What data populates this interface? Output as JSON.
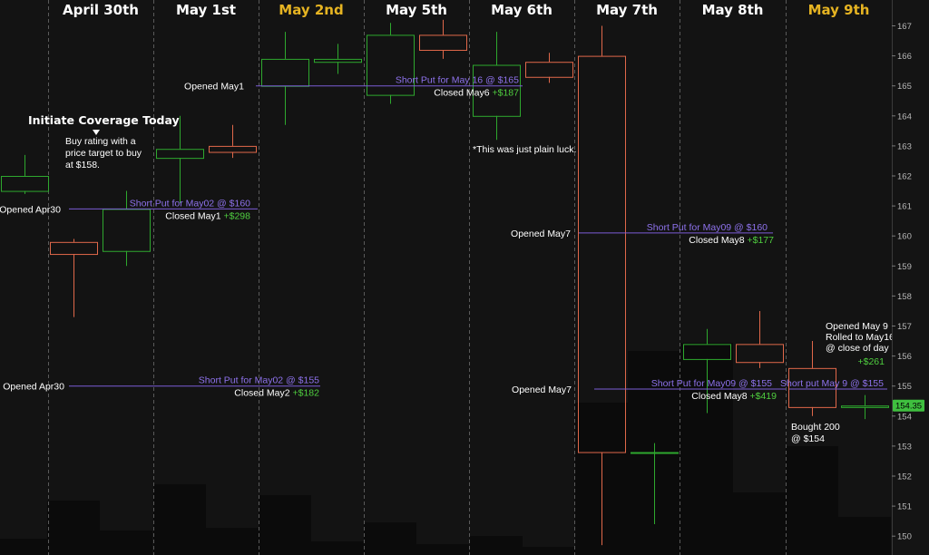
{
  "chart_data": {
    "type": "candlestick",
    "days": [
      {
        "label": "April 30th",
        "highlight": false
      },
      {
        "label": "May 1st",
        "highlight": false
      },
      {
        "label": "May 2nd",
        "highlight": true
      },
      {
        "label": "May 5th",
        "highlight": false
      },
      {
        "label": "May 6th",
        "highlight": false
      },
      {
        "label": "May 7th",
        "highlight": false
      },
      {
        "label": "May 8th",
        "highlight": false
      },
      {
        "label": "May 9th",
        "highlight": true
      }
    ],
    "ylim": [
      149.5,
      167.5
    ],
    "y_ticks": [
      150,
      151,
      152,
      153,
      154,
      155,
      156,
      157,
      158,
      159,
      160,
      161,
      162,
      163,
      164,
      165,
      166,
      167
    ],
    "candles": [
      {
        "day": 0,
        "slot": 0,
        "open": 161.5,
        "high": 162.7,
        "low": 161.4,
        "close": 162.0
      },
      {
        "day": 0,
        "slot": 1,
        "open": 159.8,
        "high": 159.9,
        "low": 157.3,
        "close": 159.4
      },
      {
        "day": 0,
        "slot": 2,
        "open": 159.5,
        "high": 161.5,
        "low": 159.0,
        "close": 160.9
      },
      {
        "day": 1,
        "slot": 0,
        "open": 162.6,
        "high": 164.0,
        "low": 161.1,
        "close": 162.9
      },
      {
        "day": 1,
        "slot": 1,
        "open": 163.0,
        "high": 163.7,
        "low": 162.6,
        "close": 162.8
      },
      {
        "day": 2,
        "slot": 0,
        "open": 165.0,
        "high": 166.8,
        "low": 163.7,
        "close": 165.9
      },
      {
        "day": 2,
        "slot": 1,
        "open": 165.8,
        "high": 166.4,
        "low": 165.4,
        "close": 165.9
      },
      {
        "day": 3,
        "slot": 0,
        "open": 164.7,
        "high": 167.1,
        "low": 164.4,
        "close": 166.7
      },
      {
        "day": 3,
        "slot": 1,
        "open": 166.7,
        "high": 167.2,
        "low": 165.9,
        "close": 166.2
      },
      {
        "day": 4,
        "slot": 0,
        "open": 164.0,
        "high": 166.8,
        "low": 163.2,
        "close": 165.7
      },
      {
        "day": 4,
        "slot": 1,
        "open": 165.8,
        "high": 166.1,
        "low": 165.1,
        "close": 165.3
      },
      {
        "day": 5,
        "slot": 0,
        "open": 166.0,
        "high": 167.0,
        "low": 149.7,
        "close": 152.8
      },
      {
        "day": 5,
        "slot": 1,
        "open": 152.8,
        "high": 153.1,
        "low": 150.4,
        "close": 152.8
      },
      {
        "day": 6,
        "slot": 0,
        "open": 155.9,
        "high": 156.9,
        "low": 154.1,
        "close": 156.4
      },
      {
        "day": 6,
        "slot": 1,
        "open": 156.4,
        "high": 157.5,
        "low": 155.6,
        "close": 155.8
      },
      {
        "day": 7,
        "slot": 0,
        "open": 155.6,
        "high": 156.5,
        "low": 154.0,
        "close": 154.3
      },
      {
        "day": 7,
        "slot": 1,
        "open": 154.3,
        "high": 154.7,
        "low": 153.9,
        "close": 154.35
      }
    ],
    "volume_bars": [
      {
        "day": 0,
        "slot": 0,
        "level": 0.06
      },
      {
        "day": 0,
        "slot": 1,
        "level": 0.2
      },
      {
        "day": 0,
        "slot": 2,
        "level": 0.09
      },
      {
        "day": 1,
        "slot": 0,
        "level": 0.26
      },
      {
        "day": 1,
        "slot": 1,
        "level": 0.1
      },
      {
        "day": 2,
        "slot": 0,
        "level": 0.22
      },
      {
        "day": 2,
        "slot": 1,
        "level": 0.05
      },
      {
        "day": 3,
        "slot": 0,
        "level": 0.12
      },
      {
        "day": 3,
        "slot": 1,
        "level": 0.04
      },
      {
        "day": 4,
        "slot": 0,
        "level": 0.07
      },
      {
        "day": 4,
        "slot": 1,
        "level": 0.03
      },
      {
        "day": 5,
        "slot": 0,
        "level": 0.56
      },
      {
        "day": 5,
        "slot": 1,
        "level": 0.75
      },
      {
        "day": 6,
        "slot": 0,
        "level": 0.78
      },
      {
        "day": 6,
        "slot": 1,
        "level": 0.23
      },
      {
        "day": 7,
        "slot": 0,
        "level": 0.4
      },
      {
        "day": 7,
        "slot": 1,
        "level": 0.14
      }
    ],
    "last_price": "154.35",
    "last_price_value": 154.35,
    "trades": [
      {
        "price": 160.9,
        "from_day": 0,
        "to_day": 1,
        "opened": "Opened Apr30",
        "label": "Short Put for May02 @ $160",
        "closed": "Closed May1",
        "profit": "+$298"
      },
      {
        "price": 155.0,
        "from_day": 0,
        "to_day": 2,
        "opened": "Opened Apr30",
        "label": "Short Put for May02 @ $155",
        "closed": "Closed May2",
        "profit": "+$182"
      },
      {
        "price": 165.0,
        "from_day": 2,
        "to_day": 4,
        "opened": "Opened May1",
        "label": "Short Put for May 16 @ $165",
        "closed": "Closed May6",
        "profit": "+$187"
      },
      {
        "price": 160.1,
        "from_day": 5,
        "to_day": 6,
        "opened": "Opened May7",
        "label": "Short Put for May09 @ $160",
        "closed": "Closed May8",
        "profit": "+$177"
      },
      {
        "price": 154.9,
        "from_day": 5,
        "to_day": 6,
        "opened": "Opened May7",
        "label": "Short Put for May09 @ $155",
        "closed": "Closed May8",
        "profit": "+$419"
      },
      {
        "price": 154.9,
        "from_day": 7,
        "to_day": 7,
        "opened": "",
        "label": "Short put May 9 @ $155",
        "closed": "",
        "profit": ""
      }
    ],
    "notes": {
      "coverage_title": "Initiate Coverage Today",
      "coverage_body": [
        "Buy rating with a",
        "price target to buy",
        "at $158."
      ],
      "luck": "*This was just plain luck.",
      "roll": [
        "Opened May 9",
        "Rolled to May16",
        "@ close of day"
      ],
      "roll_profit": "+$261",
      "bought": [
        "Bought 200",
        "@ $154"
      ]
    },
    "colors": {
      "up": "#2ea82e",
      "down": "#e0684a",
      "trade_line": "#7b5cd6",
      "trade_label": "#8e72ec",
      "profit": "#4fcf3f",
      "day_label": "#ffffff",
      "day_label_highlight": "#e6b422",
      "last_price_badge": "#3fbf3f",
      "volume": "#0b0b0b"
    }
  }
}
